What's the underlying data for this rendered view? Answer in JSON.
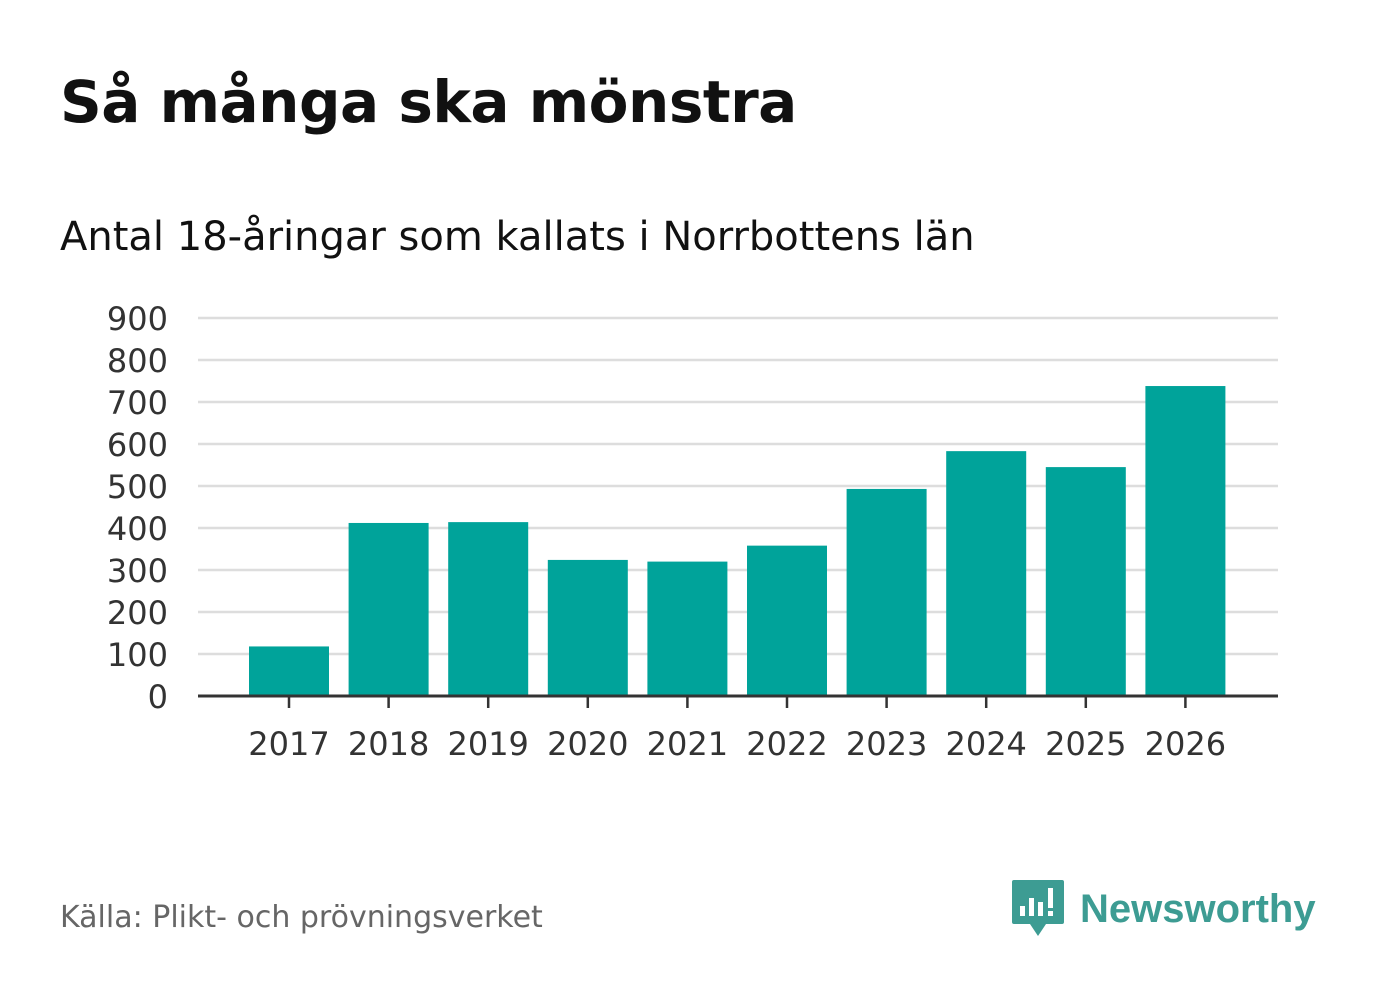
{
  "title": "Så många ska mönstra",
  "subtitle": "Antal 18-åringar som kallats i Norrbottens län",
  "source": "Källa: Plikt- och prövningsverket",
  "brand": {
    "name": "Newsworthy",
    "icon": "newsworthy-logo-icon",
    "color": "#3d9c93"
  },
  "colors": {
    "bar": "#00a39a",
    "grid": "#dddddd",
    "axis": "#333333",
    "tick_text": "#333333"
  },
  "chart_data": {
    "type": "bar",
    "title": "Så många ska mönstra",
    "subtitle": "Antal 18-åringar som kallats i Norrbottens län",
    "xlabel": "",
    "ylabel": "",
    "categories": [
      "2017",
      "2018",
      "2019",
      "2020",
      "2021",
      "2022",
      "2023",
      "2024",
      "2025",
      "2026"
    ],
    "values": [
      118,
      412,
      414,
      324,
      320,
      358,
      493,
      583,
      545,
      738
    ],
    "ylim": [
      0,
      900
    ],
    "yticks": [
      "0",
      "100",
      "200",
      "300",
      "400",
      "500",
      "600",
      "700",
      "800",
      "900"
    ],
    "grid": true,
    "legend": "none"
  }
}
